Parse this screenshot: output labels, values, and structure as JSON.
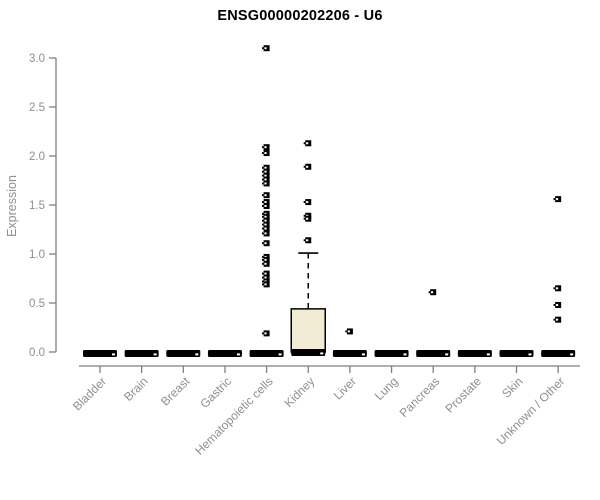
{
  "chart_data": {
    "type": "boxplot",
    "title": "ENSG00000202206 - U6",
    "ylabel": "Expression",
    "xlabel": "",
    "ylim": [
      0.0,
      3.0
    ],
    "yticks": [
      0.0,
      0.5,
      1.0,
      1.5,
      2.0,
      2.5,
      3.0
    ],
    "grid": false,
    "legend": "none",
    "categories": [
      "Bladder",
      "Brain",
      "Breast",
      "Gastric",
      "Hematopoietic cells",
      "Kidney",
      "Liver",
      "Lung",
      "Pancreas",
      "Prostate",
      "Skin",
      "Unknown / Other"
    ],
    "boxes": [
      {
        "category": "Bladder",
        "q1": 0,
        "median": 0,
        "q3": 0,
        "whisker_low": 0,
        "whisker_high": 0,
        "outliers": []
      },
      {
        "category": "Brain",
        "q1": 0,
        "median": 0,
        "q3": 0,
        "whisker_low": 0,
        "whisker_high": 0,
        "outliers": []
      },
      {
        "category": "Breast",
        "q1": 0,
        "median": 0,
        "q3": 0,
        "whisker_low": 0,
        "whisker_high": 0,
        "outliers": []
      },
      {
        "category": "Gastric",
        "q1": 0,
        "median": 0,
        "q3": 0,
        "whisker_low": 0,
        "whisker_high": 0,
        "outliers": []
      },
      {
        "category": "Hematopoietic cells",
        "q1": 0,
        "median": 0,
        "q3": 0,
        "whisker_low": 0,
        "whisker_high": 0,
        "outliers": [
          3.1,
          2.09,
          2.03,
          1.88,
          1.84,
          1.8,
          1.76,
          1.72,
          1.6,
          1.53,
          1.49,
          1.41,
          1.38,
          1.34,
          1.3,
          1.26,
          1.21,
          1.11,
          0.97,
          0.94,
          0.9,
          0.8,
          0.76,
          0.72,
          0.69,
          0.19
        ]
      },
      {
        "category": "Kidney",
        "q1": 0,
        "median": 0.01,
        "q3": 0.44,
        "whisker_low": 0,
        "whisker_high": 1.01,
        "outliers": [
          2.13,
          1.89,
          1.53,
          1.39,
          1.36,
          1.14
        ]
      },
      {
        "category": "Liver",
        "q1": 0,
        "median": 0,
        "q3": 0,
        "whisker_low": 0,
        "whisker_high": 0,
        "outliers": [
          0.21
        ]
      },
      {
        "category": "Lung",
        "q1": 0,
        "median": 0,
        "q3": 0,
        "whisker_low": 0,
        "whisker_high": 0,
        "outliers": []
      },
      {
        "category": "Pancreas",
        "q1": 0,
        "median": 0,
        "q3": 0,
        "whisker_low": 0,
        "whisker_high": 0,
        "outliers": [
          0.61
        ]
      },
      {
        "category": "Prostate",
        "q1": 0,
        "median": 0,
        "q3": 0,
        "whisker_low": 0,
        "whisker_high": 0,
        "outliers": []
      },
      {
        "category": "Skin",
        "q1": 0,
        "median": 0,
        "q3": 0,
        "whisker_low": 0,
        "whisker_high": 0,
        "outliers": []
      },
      {
        "category": "Unknown / Other",
        "q1": 0,
        "median": 0,
        "q3": 0,
        "whisker_low": 0,
        "whisker_high": 0,
        "outliers": [
          1.56,
          0.65,
          0.48,
          0.33
        ]
      }
    ],
    "colors": {
      "box_fill": "#f1ecd3",
      "box_stroke": "#000000",
      "bar_color": "#000000",
      "axis_line": "#7f7f7f",
      "tick_label": "#8a9095",
      "title_color": "#000000"
    }
  }
}
